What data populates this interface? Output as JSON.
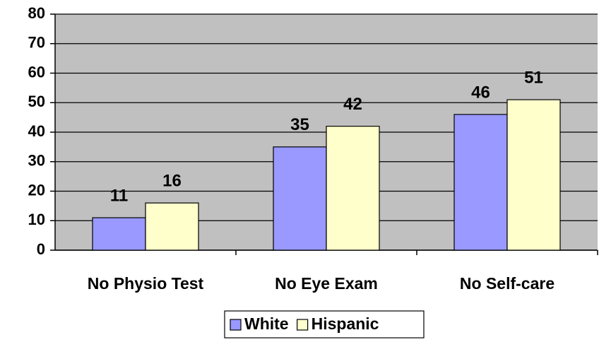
{
  "chart_data": {
    "type": "bar",
    "categories": [
      "No Physio Test",
      "No Eye Exam",
      "No Self-care"
    ],
    "series": [
      {
        "name": "White",
        "color": "#9999ff",
        "values": [
          11,
          35,
          46
        ]
      },
      {
        "name": "Hispanic",
        "color": "#ffffcc",
        "values": [
          16,
          42,
          51
        ]
      }
    ],
    "ylim": [
      0,
      80
    ],
    "yticks": [
      0,
      10,
      20,
      30,
      40,
      50,
      60,
      70,
      80
    ],
    "grid": true,
    "plot_background": "#c0c0c0",
    "legend": "bottom"
  }
}
